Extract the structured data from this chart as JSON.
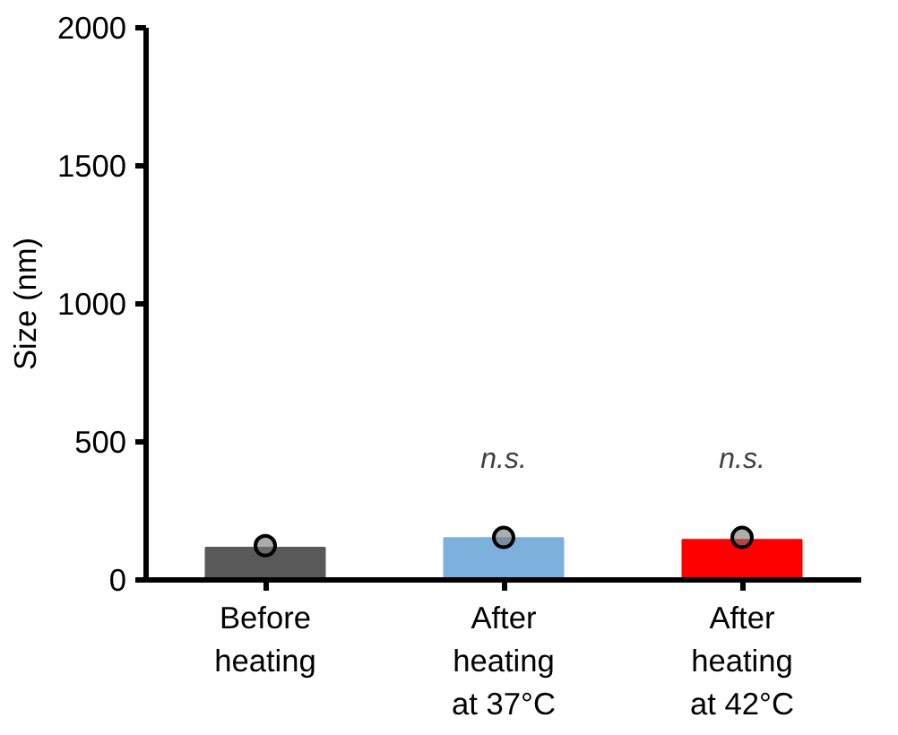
{
  "chart_data": {
    "type": "bar",
    "ylabel": "Size (nm)",
    "categories": [
      "Before\nheating",
      "After\nheating\nat 37°C",
      "After\nheating\nat 42°C"
    ],
    "values": [
      117,
      152,
      145
    ],
    "colors": [
      "#595959",
      "#7eb0dd",
      "#ff0000"
    ],
    "series": [
      {
        "type": "scatter",
        "color": "#000000",
        "x": [
          "Before\nheating",
          "After\nheating\nat 37°C",
          "After\nheating\nat 42°C"
        ],
        "values": [
          124,
          154,
          154
        ]
      }
    ],
    "ylim": [
      0,
      2000
    ],
    "yticks": [
      0,
      500,
      1000,
      1500,
      2000
    ],
    "grid": false,
    "marker": "circle",
    "annotations": [
      "n.s.",
      "n.s."
    ]
  }
}
